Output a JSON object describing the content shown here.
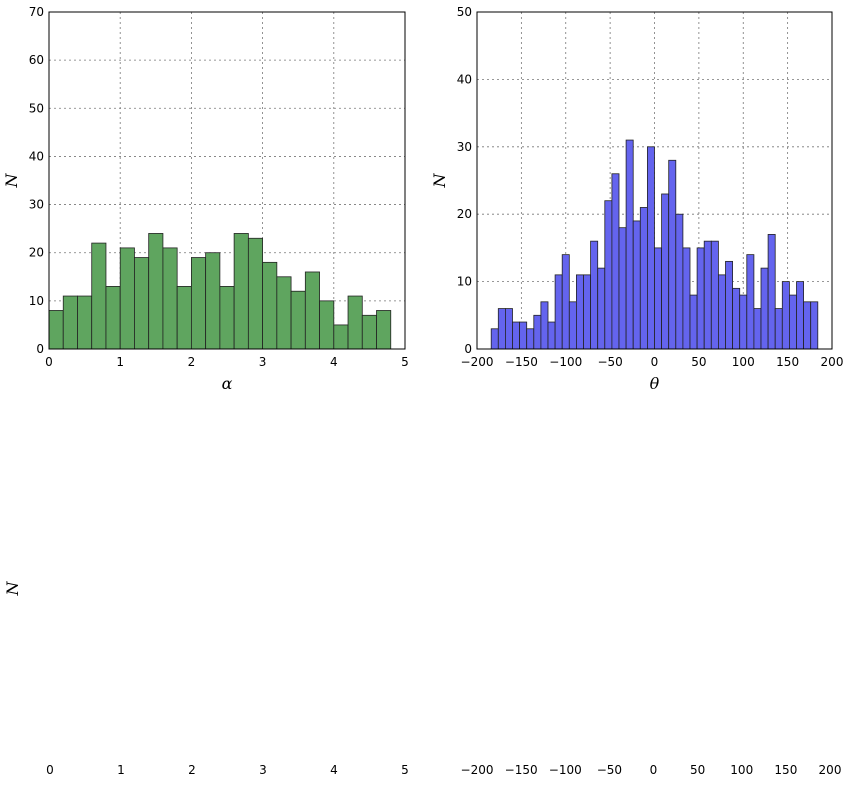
{
  "chart_data": [
    {
      "type": "histogram",
      "xlabel": "α",
      "ylabel": "N",
      "color": "#5fa55f",
      "grid": true,
      "bins": [
        0,
        0.2,
        0.4,
        0.6,
        0.8,
        1.0,
        1.2,
        1.4,
        1.6,
        1.8,
        2.0,
        2.2,
        2.4,
        2.6,
        2.8,
        3.0,
        3.2,
        3.4,
        3.6,
        3.8,
        4.0,
        4.2,
        4.4,
        4.6,
        4.8
      ],
      "values": [
        8,
        11,
        11,
        22,
        13,
        21,
        19,
        24,
        21,
        13,
        19,
        20,
        13,
        24,
        23,
        18,
        15,
        12,
        16,
        10,
        5,
        11,
        7,
        8
      ],
      "xlim": [
        0,
        5
      ],
      "xticks": [
        0,
        1,
        2,
        3,
        4,
        5
      ],
      "ylim": [
        0,
        70
      ],
      "yticks": [
        0,
        10,
        20,
        30,
        40,
        50,
        60,
        70
      ]
    },
    {
      "type": "histogram",
      "xlabel": "θ",
      "ylabel": "N",
      "color": "#6464ee",
      "grid": true,
      "bins": [
        -184,
        -176,
        -168,
        -160,
        -152,
        -144,
        -136,
        -128,
        -120,
        -112,
        -104,
        -96,
        -88,
        -80,
        -72,
        -64,
        -56,
        -48,
        -40,
        -32,
        -24,
        -16,
        -8,
        0,
        8,
        16,
        24,
        32,
        40,
        48,
        56,
        64,
        72,
        80,
        88,
        96,
        104,
        112,
        120,
        128,
        136,
        144,
        152,
        160,
        168,
        176,
        184
      ],
      "values": [
        3,
        6,
        6,
        4,
        4,
        3,
        5,
        7,
        4,
        11,
        14,
        7,
        11,
        11,
        16,
        12,
        22,
        26,
        18,
        31,
        19,
        21,
        30,
        15,
        23,
        28,
        20,
        15,
        8,
        15,
        16,
        16,
        11,
        13,
        9,
        8,
        14,
        6,
        12,
        17,
        6,
        10,
        8,
        10,
        7,
        7
      ],
      "xlim": [
        -200,
        200
      ],
      "xticks": [
        {
          "value": -200,
          "label": "−200"
        },
        {
          "value": -150,
          "label": "−150"
        },
        {
          "value": -100,
          "label": "−100"
        },
        {
          "value": -50,
          "label": "−50"
        },
        0,
        50,
        100,
        150,
        200
      ],
      "ylim": [
        0,
        50
      ],
      "yticks": [
        0,
        10,
        20,
        30,
        40,
        50
      ]
    },
    {
      "type": "empty",
      "ylabel": "N",
      "xlim": [
        0,
        5
      ],
      "xticks": [
        0,
        1,
        2,
        3,
        4,
        5
      ]
    },
    {
      "type": "empty",
      "xlim": [
        -200,
        200
      ],
      "xticks": [
        {
          "value": -200,
          "label": "−200"
        },
        {
          "value": -150,
          "label": "−150"
        },
        {
          "value": -100,
          "label": "−100"
        },
        {
          "value": -50,
          "label": "−50"
        },
        0,
        50,
        100,
        150,
        200
      ]
    }
  ]
}
